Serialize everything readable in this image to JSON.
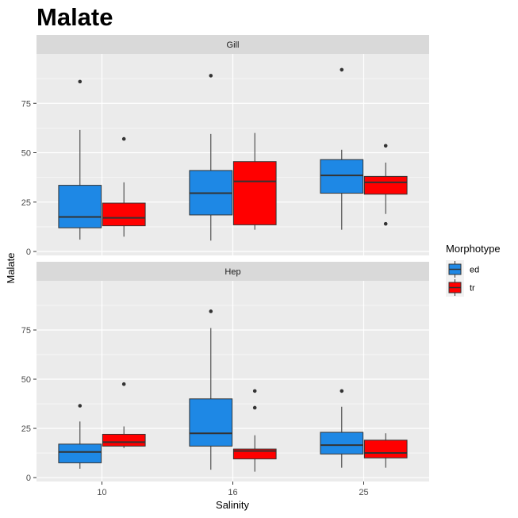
{
  "chart_data": {
    "type": "boxplot",
    "title": "Malate",
    "xlabel": "Salinity",
    "ylabel": "Malate",
    "ylim": [
      -2,
      100
    ],
    "yticks": [
      0,
      25,
      50,
      75
    ],
    "categories": [
      "10",
      "16",
      "25"
    ],
    "legend": {
      "title": "Morphotype",
      "position": "right",
      "items": [
        {
          "name": "ed",
          "color": "#1E88E5"
        },
        {
          "name": "tr",
          "color": "#FF0000"
        }
      ]
    },
    "panels": [
      {
        "label": "Gill",
        "boxes": [
          {
            "category": "10",
            "group": "ed",
            "min": 6,
            "q1": 12,
            "median": 17.5,
            "q3": 33.5,
            "max": 61.5,
            "outliers": [
              86
            ]
          },
          {
            "category": "10",
            "group": "tr",
            "min": 7.5,
            "q1": 13,
            "median": 17,
            "q3": 24.5,
            "max": 35,
            "outliers": [
              57
            ]
          },
          {
            "category": "16",
            "group": "ed",
            "min": 5.5,
            "q1": 18.5,
            "median": 29.5,
            "q3": 41,
            "max": 59.5,
            "outliers": [
              89
            ]
          },
          {
            "category": "16",
            "group": "tr",
            "min": 11,
            "q1": 13.5,
            "median": 35.5,
            "q3": 45.5,
            "max": 60,
            "outliers": []
          },
          {
            "category": "25",
            "group": "ed",
            "min": 11,
            "q1": 29.5,
            "median": 38.5,
            "q3": 46.5,
            "max": 51.5,
            "outliers": [
              92
            ]
          },
          {
            "category": "25",
            "group": "tr",
            "min": 19,
            "q1": 29,
            "median": 35,
            "q3": 38,
            "max": 45,
            "outliers": [
              53.5,
              14
            ]
          }
        ]
      },
      {
        "label": "Hep",
        "boxes": [
          {
            "category": "10",
            "group": "ed",
            "min": 4.5,
            "q1": 7.5,
            "median": 13,
            "q3": 17,
            "max": 28.5,
            "outliers": [
              36.5
            ]
          },
          {
            "category": "10",
            "group": "tr",
            "min": 15,
            "q1": 16,
            "median": 18,
            "q3": 22,
            "max": 26,
            "outliers": [
              47.5
            ]
          },
          {
            "category": "16",
            "group": "ed",
            "min": 4,
            "q1": 16,
            "median": 22.5,
            "q3": 40,
            "max": 76,
            "outliers": [
              84.5
            ]
          },
          {
            "category": "16",
            "group": "tr",
            "min": 3,
            "q1": 9.5,
            "median": 13.5,
            "q3": 14.5,
            "max": 21.5,
            "outliers": [
              44,
              35.5
            ]
          },
          {
            "category": "25",
            "group": "ed",
            "min": 5,
            "q1": 12,
            "median": 16.5,
            "q3": 23,
            "max": 36,
            "outliers": [
              44
            ]
          },
          {
            "category": "25",
            "group": "tr",
            "min": 5,
            "q1": 10,
            "median": 12.5,
            "q3": 19,
            "max": 22.5,
            "outliers": []
          }
        ]
      }
    ]
  }
}
